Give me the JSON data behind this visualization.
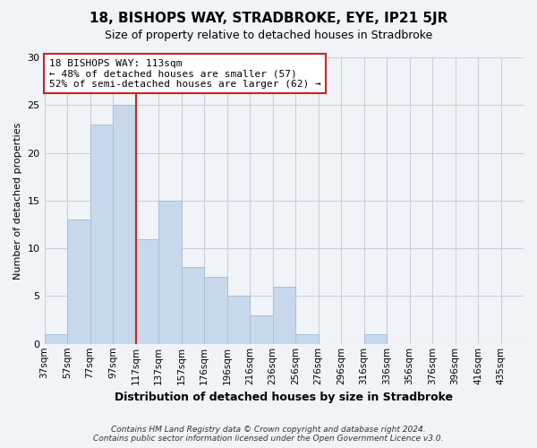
{
  "title": "18, BISHOPS WAY, STRADBROKE, EYE, IP21 5JR",
  "subtitle": "Size of property relative to detached houses in Stradbroke",
  "xlabel": "Distribution of detached houses by size in Stradbroke",
  "ylabel": "Number of detached properties",
  "bin_labels": [
    "37sqm",
    "57sqm",
    "77sqm",
    "97sqm",
    "117sqm",
    "137sqm",
    "157sqm",
    "176sqm",
    "196sqm",
    "216sqm",
    "236sqm",
    "256sqm",
    "276sqm",
    "296sqm",
    "316sqm",
    "336sqm",
    "356sqm",
    "376sqm",
    "396sqm",
    "416sqm",
    "435sqm"
  ],
  "bar_heights": [
    1,
    13,
    23,
    25,
    11,
    15,
    8,
    7,
    5,
    3,
    6,
    1,
    0,
    0,
    1,
    0,
    0,
    0,
    0,
    0,
    0
  ],
  "bar_color": "#c8d8eb",
  "bar_edge_color": "#a8c0d8",
  "vline_x_index": 4,
  "vline_color": "#cc2222",
  "annotation_line1": "18 BISHOPS WAY: 113sqm",
  "annotation_line2": "← 48% of detached houses are smaller (57)",
  "annotation_line3": "52% of semi-detached houses are larger (62) →",
  "annotation_box_color": "#ffffff",
  "annotation_box_edge": "#cc2222",
  "ylim": [
    0,
    30
  ],
  "yticks": [
    0,
    5,
    10,
    15,
    20,
    25,
    30
  ],
  "footer": "Contains HM Land Registry data © Crown copyright and database right 2024.\nContains public sector information licensed under the Open Government Licence v3.0.",
  "bg_color": "#f0f4f8",
  "plot_bg_color": "#f0f4f8",
  "grid_color": "#c8d0da"
}
